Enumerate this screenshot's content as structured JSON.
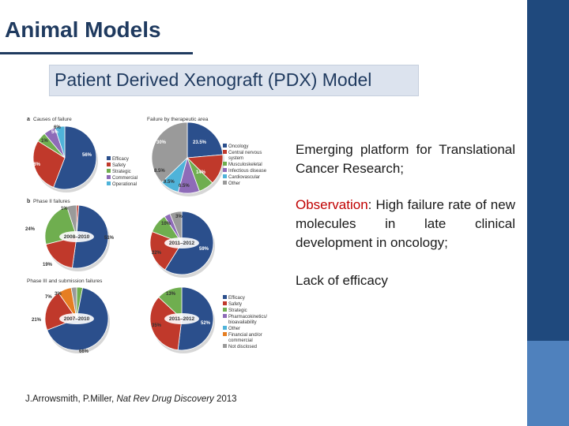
{
  "slide": {
    "title": "Animal Models",
    "subtitle": "Patient Derived Xenograft (PDX) Model",
    "bullets": {
      "b1": "Emerging platform for Translational Cancer Research;",
      "b2_label": "Observation",
      "b2_text": ": High failure rate of new molecules in late clinical development in oncology;",
      "b3": "Lack of efficacy"
    },
    "citation": {
      "authors": "J.Arrowsmith, P.Miller, ",
      "journal": "Nat Rev Drug Discovery",
      "year": " 2013"
    }
  },
  "figure": {
    "panel_a_label": "a",
    "panel_a_title": "Causes of failure",
    "panel_a2_title": "Failure by therapeutic area",
    "panel_b_label": "b",
    "panel_b_title": "Phase II failures",
    "panel_c_title": "Phase III and submission failures",
    "legend1": [
      "Efficacy",
      "Safety",
      "Strategic",
      "Commercial",
      "Operational"
    ],
    "legend2": [
      "Oncology",
      "Central nervous",
      "system",
      "Musculoskeletal",
      "Infectious disease",
      "Cardiovascular",
      "Other"
    ],
    "legend3": [
      "Efficacy",
      "Safety",
      "Strategic",
      "Pharmacokinetics/",
      "bioavailability",
      "Other",
      "Financial and/or",
      "commercial",
      "Not disclosed"
    ],
    "pies": {
      "causes": {
        "labels": [
          "5%",
          "1%",
          "28%",
          "56%",
          "6%"
        ]
      },
      "therapeutic": {
        "labels": [
          "30%",
          "23.5%",
          "14%",
          "6.5%",
          "9.5%",
          "8.5%"
        ]
      },
      "p2_0810": {
        "center": "2008–2010",
        "labels": [
          "1%",
          "24%",
          "51%",
          "19%"
        ]
      },
      "p2_1112": {
        "center": "2011–2012",
        "labels": [
          "3%",
          "10%",
          "59%",
          "22%"
        ]
      },
      "p3_0710": {
        "center": "2007–2010",
        "labels": [
          "3%",
          "7%",
          "21%",
          "66%"
        ]
      },
      "p3_1112": {
        "center": "2011–2012",
        "labels": [
          "13%",
          "52%",
          "35%"
        ]
      }
    },
    "colors": {
      "efficacy": "#2b4f8c",
      "safety": "#c0392b",
      "strategic": "#6fae4f",
      "commercial": "#8e6bb8",
      "operational": "#4fb3d9",
      "other": "#9a9a9a",
      "oncology": "#2b4f8c",
      "cns": "#c0392b",
      "musculo": "#6fae4f",
      "infectious": "#8e6bb8",
      "cardio": "#4fb3d9",
      "financial": "#e67e22"
    }
  }
}
